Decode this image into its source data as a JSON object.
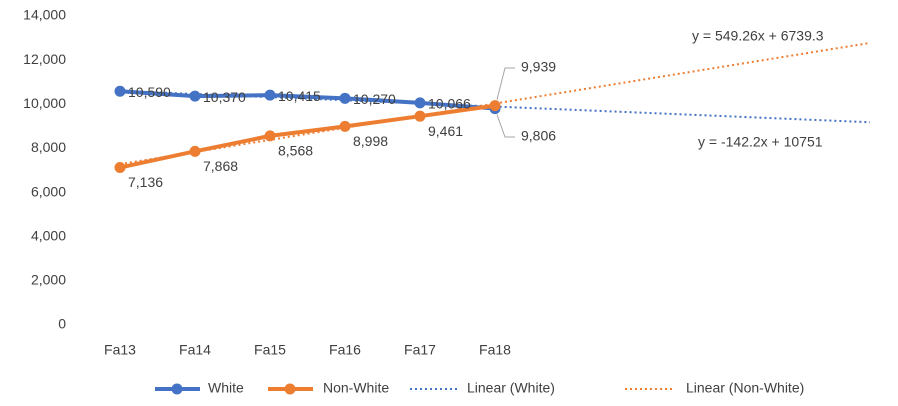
{
  "chart_data": {
    "type": "line",
    "categories": [
      "Fa13",
      "Fa14",
      "Fa15",
      "Fa16",
      "Fa17",
      "Fa18",
      null,
      null,
      null,
      null,
      null
    ],
    "series": [
      {
        "name": "White",
        "color": "#4472c4",
        "values": [
          10590,
          10370,
          10415,
          10270,
          10066,
          9806,
          null,
          null,
          null,
          null,
          null
        ],
        "value_labels": [
          "10,590",
          "10,370",
          "10,415",
          "10,270",
          "10,066",
          "9,806",
          null,
          null,
          null,
          null,
          null
        ]
      },
      {
        "name": "Non-White",
        "color": "#ed7d31",
        "values": [
          7136,
          7868,
          8568,
          8998,
          9461,
          9939,
          null,
          null,
          null,
          null,
          null
        ],
        "value_labels": [
          "7,136",
          "7,868",
          "8,568",
          "8,998",
          "9,461",
          "9,939",
          null,
          null,
          null,
          null,
          null
        ]
      }
    ],
    "trendlines": [
      {
        "name": "Linear (White)",
        "color": "#4472c4",
        "slope": -142.2,
        "intercept": 10751,
        "label": "y = -142.2x + 10751"
      },
      {
        "name": "Linear (Non-White)",
        "color": "#ed7d31",
        "slope": 549.26,
        "intercept": 6739.3,
        "label": "y = 549.26x + 6739.3"
      }
    ],
    "ylim": [
      0,
      14000
    ],
    "yticks": [
      0,
      {
        "value": 2000,
        "label": "2,000"
      },
      {
        "value": 4000,
        "label": "4,000"
      },
      {
        "value": 6000,
        "label": "6,000"
      },
      {
        "value": 8000,
        "label": "8,000"
      },
      {
        "value": 10000,
        "label": "10,000"
      },
      {
        "value": 12000,
        "label": "12,000"
      },
      {
        "value": 14000,
        "label": "14,000"
      }
    ],
    "grid": false,
    "legend": "bottom"
  }
}
